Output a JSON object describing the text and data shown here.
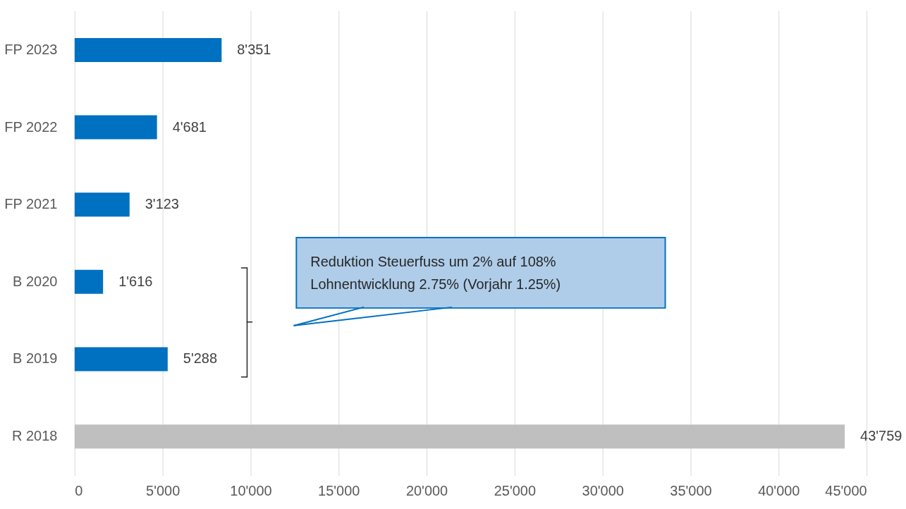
{
  "chart_data": {
    "type": "bar",
    "orientation": "horizontal",
    "categories": [
      "FP 2023",
      "FP 2022",
      "FP 2021",
      "B 2020",
      "B 2019",
      "R 2018"
    ],
    "values": [
      8351,
      4681,
      3123,
      1616,
      5288,
      43759
    ],
    "colors": [
      "#0070c0",
      "#0070c0",
      "#0070c0",
      "#0070c0",
      "#0070c0",
      "#bfbfbf"
    ],
    "value_labels": [
      "8'351",
      "4'681",
      "3'123",
      "1'616",
      "5'288",
      "43'759"
    ],
    "xlim": [
      0,
      45000
    ],
    "xticks": [
      0,
      {
        "value": 5000,
        "label": "5'000"
      },
      {
        "value": 10000,
        "label": "10'000"
      },
      {
        "value": 15000,
        "label": "15'000"
      },
      {
        "value": 20000,
        "label": "20'000"
      },
      {
        "value": 25000,
        "label": "25'000"
      },
      {
        "value": 30000,
        "label": "30'000"
      },
      {
        "value": 35000,
        "label": "35'000"
      },
      {
        "value": 40000,
        "label": "40'000"
      },
      {
        "value": 45000,
        "label": "45'000"
      }
    ],
    "grid": "x",
    "annotations": [
      "Reduktion Steuerfuss um 2% auf 108%\nLohnentwicklung 2.75% (Vorjahr 1.25%)"
    ]
  }
}
